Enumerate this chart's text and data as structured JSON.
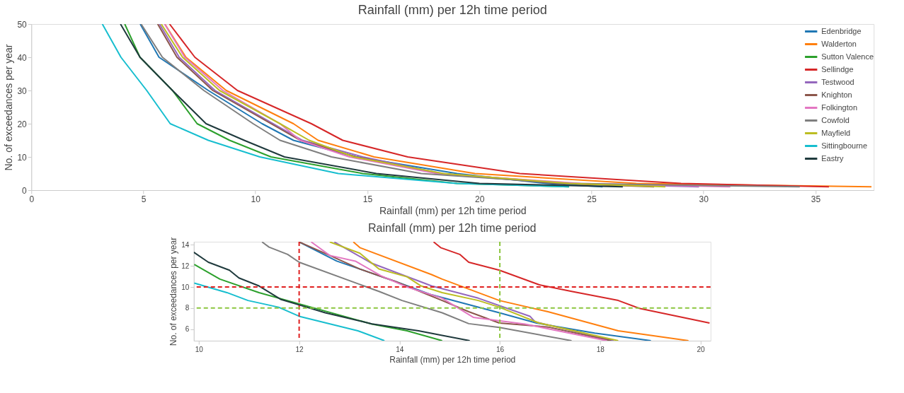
{
  "chart_data": [
    {
      "type": "line",
      "title": "Rainfall (mm) per 12h time period",
      "xlabel": "Rainfall (mm) per 12h time period",
      "ylabel": "No. of exceedances per year",
      "xlim": [
        0,
        37.6
      ],
      "xticks": [
        0,
        5,
        10,
        15,
        20,
        25,
        30,
        35
      ],
      "ylim": [
        0,
        50
      ],
      "yticks": [
        0,
        10,
        20,
        30,
        40,
        50
      ],
      "grid": false,
      "legend": "top right",
      "line_style": "solid",
      "marker": "none",
      "series": [
        {
          "name": "Edenbridge",
          "color": "#1f77b4",
          "x": [
            4.86,
            5.7,
            7.9,
            10.3,
            11.7,
            14.5,
            19.0,
            23,
            25.5
          ],
          "values": [
            50,
            40,
            30,
            20,
            15,
            10,
            5,
            2,
            1
          ]
        },
        {
          "name": "Walderton",
          "color": "#ff7f0e",
          "x": [
            5.96,
            6.9,
            8.7,
            11.7,
            12.8,
            15.3,
            19.8,
            27,
            37.5
          ],
          "values": [
            50,
            40,
            30,
            20,
            15,
            10,
            5,
            2,
            1
          ]
        },
        {
          "name": "Sutton Valence",
          "color": "#2ca02c",
          "x": [
            4.17,
            4.85,
            6.3,
            7.4,
            8.85,
            10.7,
            14.8,
            19,
            24
          ],
          "values": [
            50,
            40,
            30,
            20,
            15,
            10,
            5,
            2,
            1
          ]
        },
        {
          "name": "Sellindge",
          "color": "#d62728",
          "x": [
            6.17,
            7.3,
            9.2,
            12.5,
            13.9,
            16.8,
            21.8,
            29,
            35.6
          ],
          "values": [
            50,
            40,
            30,
            20,
            15,
            10,
            5,
            2,
            1
          ]
        },
        {
          "name": "Testwood",
          "color": "#9467bd",
          "x": [
            5.72,
            6.6,
            8.2,
            10.8,
            12.1,
            14.8,
            18.3,
            24,
            29.8
          ],
          "values": [
            50,
            40,
            30,
            20,
            15,
            10,
            5,
            2,
            1
          ]
        },
        {
          "name": "Knighton",
          "color": "#8c564b",
          "x": [
            5.64,
            6.5,
            8.1,
            10.7,
            12.0,
            14.5,
            18.2,
            23.5,
            27.8
          ],
          "values": [
            50,
            40,
            30,
            20,
            15,
            10,
            5,
            2,
            1
          ]
        },
        {
          "name": "Folkington",
          "color": "#e377c2",
          "x": [
            5.95,
            6.85,
            8.55,
            11.1,
            12.0,
            14.2,
            18.1,
            24.5,
            31.2
          ],
          "values": [
            50,
            40,
            30,
            20,
            15,
            10,
            5,
            2,
            1
          ]
        },
        {
          "name": "Cowfold",
          "color": "#7f7f7f",
          "x": [
            4.9,
            5.85,
            7.7,
            9.9,
            11.1,
            13.4,
            17.4,
            24,
            34.3
          ],
          "values": [
            50,
            40,
            30,
            20,
            15,
            10,
            5,
            2,
            1
          ]
        },
        {
          "name": "Mayfield",
          "color": "#bcbd22",
          "x": [
            5.8,
            6.75,
            8.4,
            11.1,
            12.4,
            14.4,
            18.4,
            24,
            28.3
          ],
          "values": [
            50,
            40,
            30,
            20,
            15,
            10,
            5,
            2,
            1
          ]
        },
        {
          "name": "Sittingbourne",
          "color": "#17becf",
          "x": [
            3.17,
            4.0,
            5.15,
            6.2,
            7.9,
            10.2,
            13.7,
            19,
            24
          ],
          "values": [
            50,
            40,
            30,
            20,
            15,
            10,
            5,
            2,
            1
          ]
        },
        {
          "name": "Eastry",
          "color": "#1f3a3d",
          "x": [
            3.98,
            4.85,
            6.3,
            7.8,
            9.5,
            11.3,
            15.4,
            20,
            26.4
          ],
          "values": [
            50,
            40,
            30,
            20,
            15,
            10,
            5,
            2,
            1
          ]
        }
      ]
    },
    {
      "type": "line",
      "title": "Rainfall (mm) per 12h time period",
      "xlabel": "Rainfall (mm) per 12h time period",
      "ylabel": "No. of exceedances per year",
      "xlim": [
        9.9,
        20.2
      ],
      "xticks": [
        10,
        12,
        14,
        16,
        18,
        20
      ],
      "ylim": [
        4.9,
        14.3
      ],
      "yticks": [
        6,
        8,
        10,
        12,
        14
      ],
      "grid": false,
      "legend": false,
      "line_style": "solid",
      "marker": "none",
      "ref_lines": [
        {
          "axis": "x",
          "value": 12,
          "color": "#e02020",
          "line_style": "dashed"
        },
        {
          "axis": "x",
          "value": 16,
          "color": "#8cc63f",
          "line_style": "dashed"
        },
        {
          "axis": "y",
          "value": 10,
          "color": "#e02020",
          "line_style": "dashed"
        },
        {
          "axis": "y",
          "value": 8,
          "color": "#8cc63f",
          "line_style": "dashed"
        }
      ],
      "series": [
        {
          "color": "#1f77b4",
          "x": [
            12.0,
            12.75,
            13.21,
            13.91,
            14.64,
            15.99,
            16.73,
            17.89,
            19.01
          ],
          "values": [
            14.28,
            12.46,
            11.71,
            10.54,
            9.26,
            7.55,
            6.58,
            5.62,
            4.9
          ]
        },
        {
          "color": "#ff7f0e",
          "x": [
            13.08,
            13.21,
            14.64,
            14.85,
            15.99,
            16.96,
            18.36,
            19.76
          ],
          "values": [
            14.28,
            13.74,
            11.18,
            10.75,
            8.72,
            7.65,
            5.84,
            4.9
          ]
        },
        {
          "color": "#2ca02c",
          "x": [
            9.91,
            10.42,
            11.2,
            12.0,
            13.45,
            14.15,
            14.85
          ],
          "values": [
            12.14,
            10.75,
            9.47,
            8.4,
            6.48,
            5.84,
            4.9
          ]
        },
        {
          "color": "#d62728",
          "x": [
            14.68,
            14.82,
            15.2,
            15.38,
            15.99,
            16.78,
            17.43,
            18.36,
            18.78,
            20.18
          ],
          "values": [
            14.28,
            13.74,
            13.1,
            12.35,
            11.6,
            10.22,
            9.58,
            8.72,
            7.97,
            6.58
          ]
        },
        {
          "color": "#9467bd",
          "x": [
            12.7,
            13.45,
            14.64,
            15.57,
            16.6,
            16.7,
            18.27
          ],
          "values": [
            14.28,
            12.25,
            10.1,
            8.94,
            7.22,
            6.7,
            4.9
          ]
        },
        {
          "color": "#8c564b",
          "x": [
            12.0,
            12.61,
            13.21,
            13.91,
            14.85,
            15.38,
            15.99,
            16.96,
            18.22
          ],
          "values": [
            14.28,
            13.0,
            11.71,
            10.54,
            8.72,
            7.65,
            6.58,
            6.2,
            4.9
          ]
        },
        {
          "color": "#e377c2",
          "x": [
            12.24,
            12.61,
            13.12,
            13.63,
            14.15,
            14.85,
            15.47,
            16.5,
            18.13
          ],
          "values": [
            14.28,
            13.0,
            12.46,
            11.07,
            10.0,
            8.94,
            7.12,
            6.48,
            4.9
          ]
        },
        {
          "color": "#7f7f7f",
          "x": [
            11.26,
            11.4,
            11.77,
            12.0,
            13.59,
            14.05,
            14.85,
            15.38,
            15.99,
            17.43
          ],
          "values": [
            14.28,
            13.79,
            13.1,
            12.35,
            9.58,
            8.72,
            7.55,
            6.52,
            6.16,
            4.9
          ]
        },
        {
          "color": "#bcbd22",
          "x": [
            12.61,
            13.21,
            13.59,
            14.15,
            14.43,
            14.85,
            15.57,
            15.99,
            16.78,
            18.36
          ],
          "values": [
            14.28,
            13.21,
            11.71,
            10.97,
            10.1,
            9.47,
            8.72,
            8.08,
            6.58,
            4.9
          ]
        },
        {
          "color": "#17becf",
          "x": [
            9.91,
            10.56,
            10.98,
            11.59,
            12.0,
            13.17,
            13.7
          ],
          "values": [
            10.37,
            9.47,
            8.72,
            8.08,
            7.22,
            5.84,
            4.9
          ]
        },
        {
          "color": "#1f3a3d",
          "x": [
            9.9,
            10.19,
            10.61,
            10.8,
            11.2,
            11.63,
            12.0,
            12.52,
            13.45,
            14.38,
            14.85,
            15.4
          ],
          "values": [
            13.3,
            12.35,
            11.6,
            10.86,
            10.1,
            8.83,
            8.3,
            7.55,
            6.5,
            5.84,
            5.4,
            4.9
          ]
        }
      ]
    }
  ]
}
